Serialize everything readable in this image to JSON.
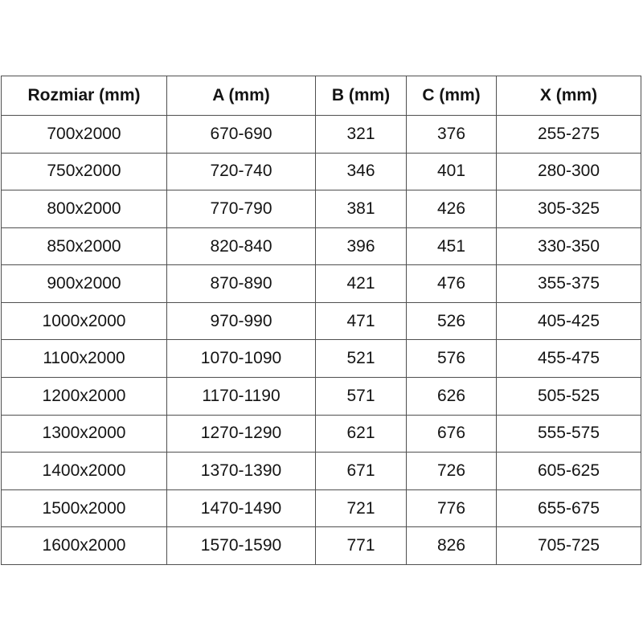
{
  "chart_data": {
    "type": "table",
    "columns": [
      "Rozmiar (mm)",
      "A (mm)",
      "B (mm)",
      "C (mm)",
      "X (mm)"
    ],
    "rows": [
      [
        "700x2000",
        "670-690",
        "321",
        "376",
        "255-275"
      ],
      [
        "750x2000",
        "720-740",
        "346",
        "401",
        "280-300"
      ],
      [
        "800x2000",
        "770-790",
        "381",
        "426",
        "305-325"
      ],
      [
        "850x2000",
        "820-840",
        "396",
        "451",
        "330-350"
      ],
      [
        "900x2000",
        "870-890",
        "421",
        "476",
        "355-375"
      ],
      [
        "1000x2000",
        "970-990",
        "471",
        "526",
        "405-425"
      ],
      [
        "1100x2000",
        "1070-1090",
        "521",
        "576",
        "455-475"
      ],
      [
        "1200x2000",
        "1170-1190",
        "571",
        "626",
        "505-525"
      ],
      [
        "1300x2000",
        "1270-1290",
        "621",
        "676",
        "555-575"
      ],
      [
        "1400x2000",
        "1370-1390",
        "671",
        "726",
        "605-625"
      ],
      [
        "1500x2000",
        "1470-1490",
        "721",
        "776",
        "655-675"
      ],
      [
        "1600x2000",
        "1570-1590",
        "771",
        "826",
        "705-725"
      ]
    ]
  },
  "colors": {
    "border": "#4f4f4f",
    "text": "#141414",
    "background": "#ffffff"
  }
}
